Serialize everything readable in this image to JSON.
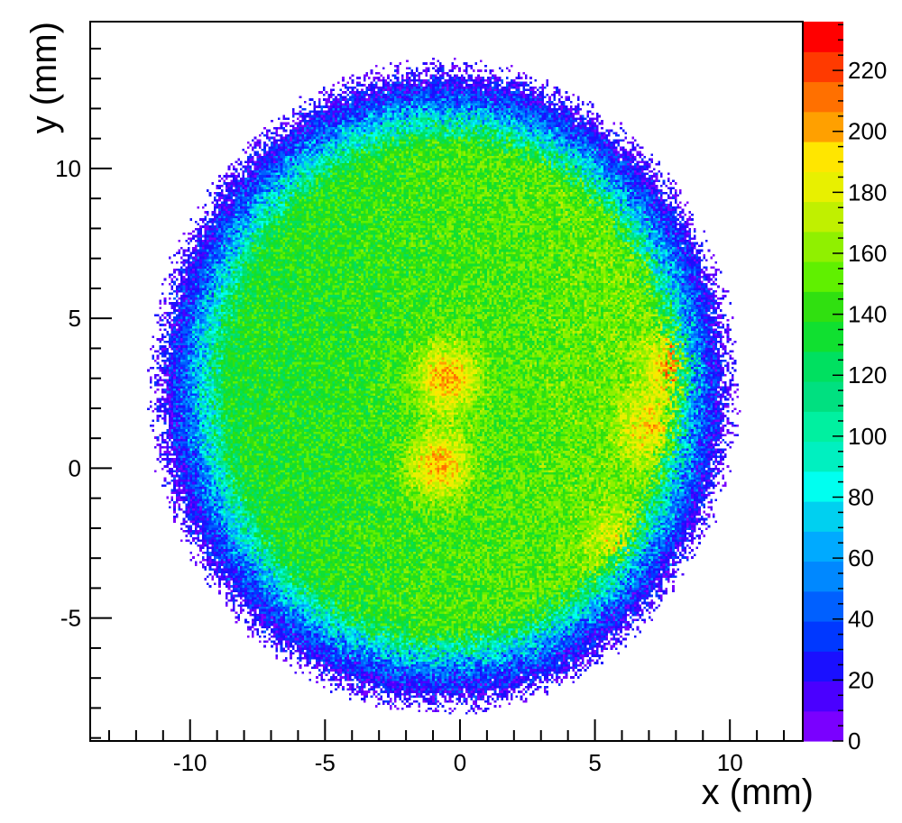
{
  "chart_data": {
    "type": "heatmap",
    "title": "",
    "xlabel": "x (mm)",
    "ylabel": "y (mm)",
    "xlim": [
      -13.7,
      12.7
    ],
    "ylim": [
      -9.1,
      14.9
    ],
    "x_ticks": [
      -10,
      -5,
      0,
      5,
      10
    ],
    "y_ticks": [
      -5,
      0,
      5,
      10
    ],
    "colorbar": {
      "range": [
        0,
        236
      ],
      "ticks": [
        0,
        20,
        40,
        60,
        80,
        100,
        120,
        140,
        160,
        180,
        200,
        220
      ],
      "palette": [
        "#7a00ff",
        "#4a00ff",
        "#1a10ff",
        "#0038ff",
        "#0060ff",
        "#0088ff",
        "#00aaff",
        "#00d0f0",
        "#00fff0",
        "#00f0c0",
        "#00f0a0",
        "#00e080",
        "#00e060",
        "#10e030",
        "#30e010",
        "#60f000",
        "#90f000",
        "#c0f000",
        "#e8f000",
        "#ffe600",
        "#ffa000",
        "#ff7000",
        "#ff3a00",
        "#ff0000"
      ]
    },
    "distribution": {
      "shape": "filled-circle",
      "center": [
        -0.6,
        2.7
      ],
      "radius": 10.6,
      "edge_counts": [
        0,
        45,
        75
      ],
      "interior_counts": [
        130,
        160
      ],
      "hotspots": [
        {
          "x": -0.5,
          "y": 3.0,
          "counts": 215
        },
        {
          "x": -0.8,
          "y": 0.1,
          "counts": 215
        },
        {
          "x": 8.2,
          "y": 3.5,
          "counts": 225
        },
        {
          "x": 7.0,
          "y": 1.3,
          "counts": 195
        },
        {
          "x": 5.8,
          "y": -2.6,
          "counts": 190
        }
      ]
    }
  }
}
